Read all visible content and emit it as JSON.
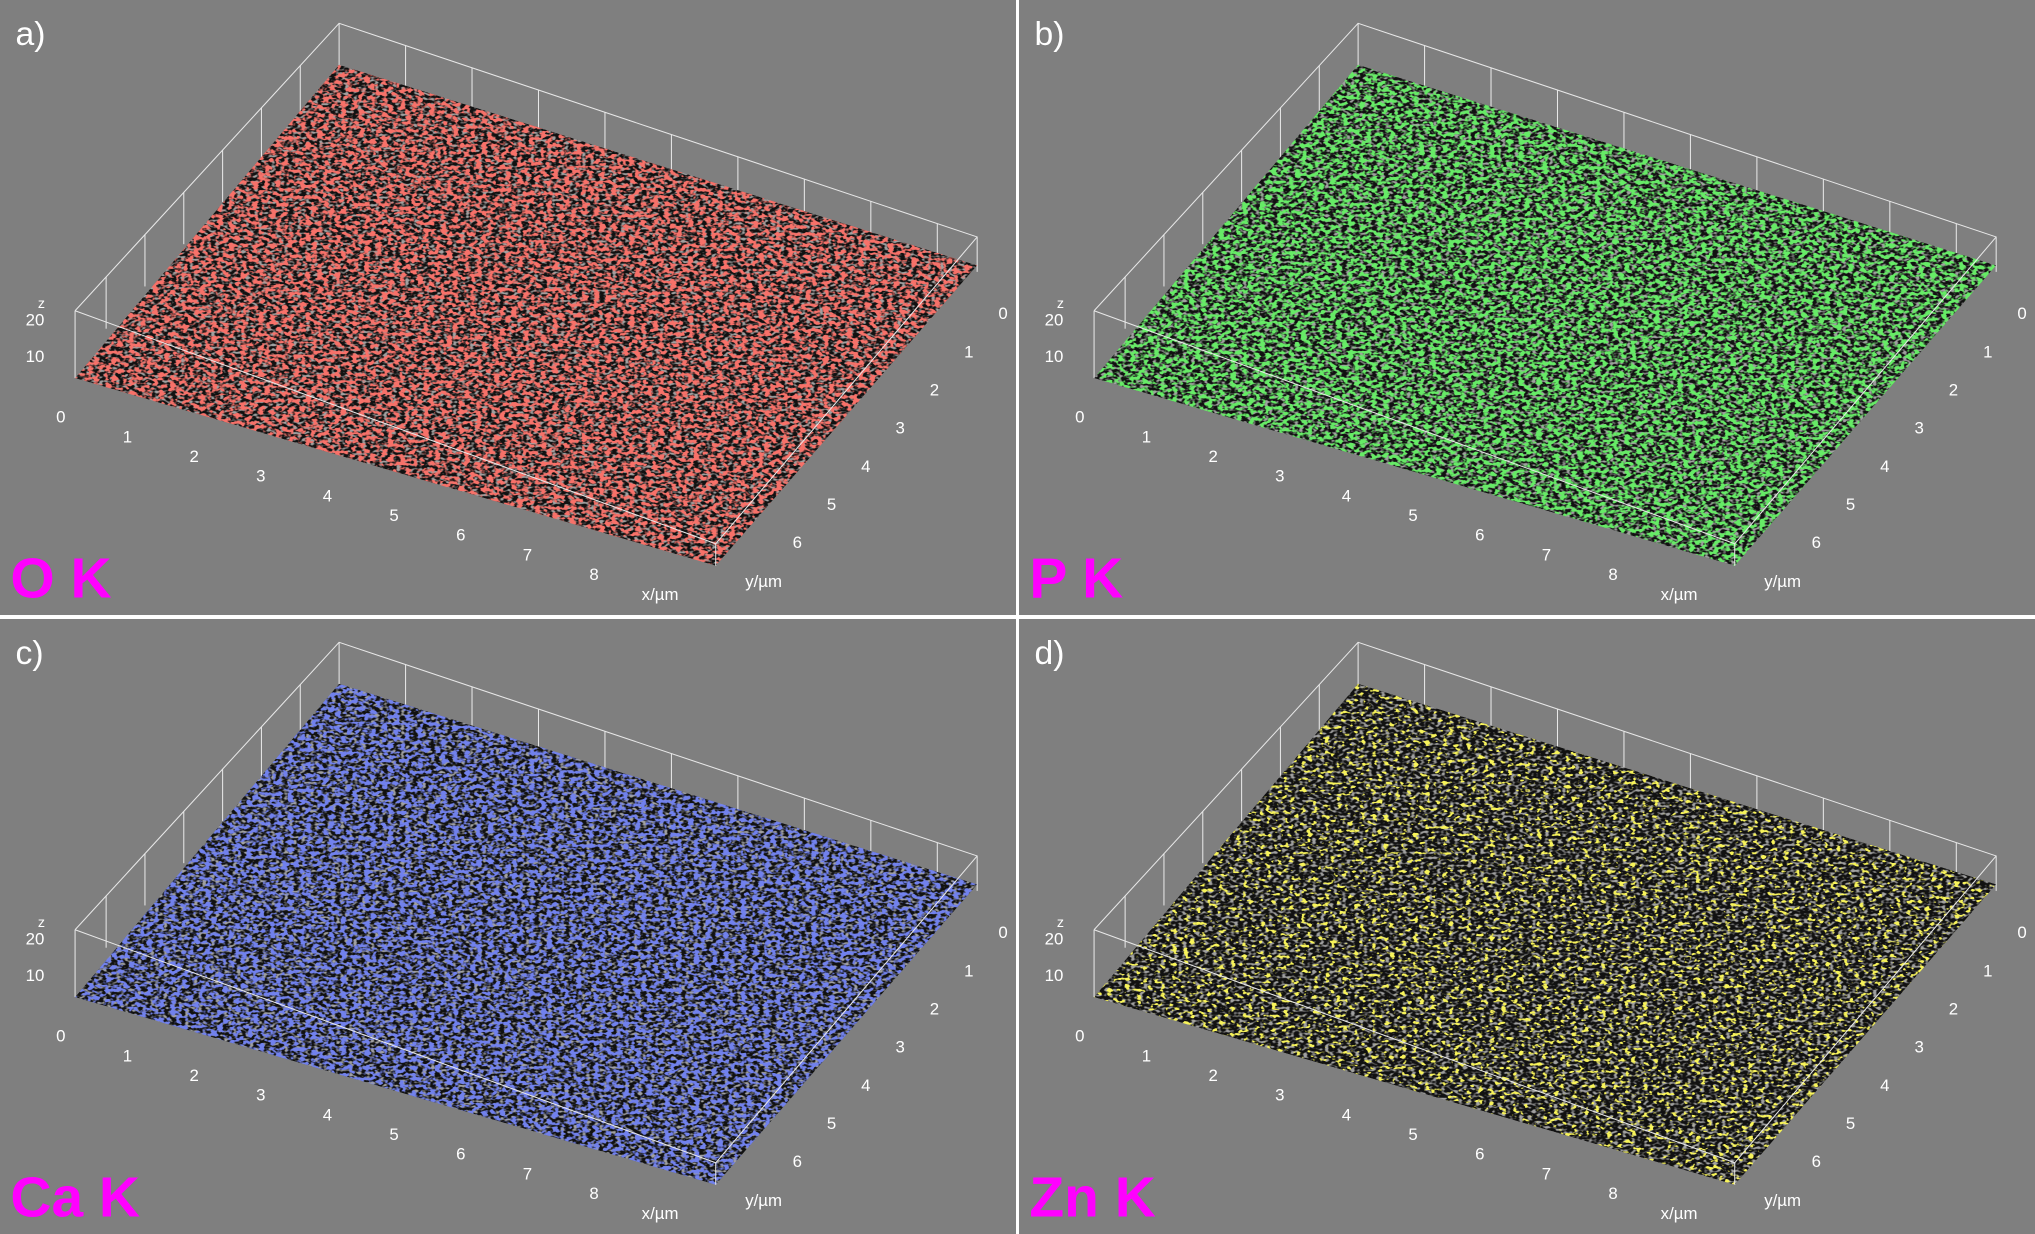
{
  "panels": [
    {
      "label": "a)",
      "element": "O K",
      "color": "#ee2a24",
      "x_ticks": [
        "0",
        "1",
        "2",
        "3",
        "4",
        "5",
        "6",
        "7",
        "8"
      ],
      "y_ticks": [
        "0",
        "1",
        "2",
        "3",
        "4",
        "5",
        "6"
      ],
      "z_ticks": [
        "10",
        "20"
      ],
      "z_label": "z",
      "x_label": "x/µm",
      "y_label": "y/µm"
    },
    {
      "label": "b)",
      "element": "P K",
      "color": "#22d422",
      "x_ticks": [
        "0",
        "1",
        "2",
        "3",
        "4",
        "5",
        "6",
        "7",
        "8"
      ],
      "y_ticks": [
        "0",
        "1",
        "2",
        "3",
        "4",
        "5",
        "6"
      ],
      "z_ticks": [
        "10",
        "20"
      ],
      "z_label": "z",
      "x_label": "x/µm",
      "y_label": "y/µm"
    },
    {
      "label": "c)",
      "element": "Ca K",
      "color": "#2a38d8",
      "x_ticks": [
        "0",
        "1",
        "2",
        "3",
        "4",
        "5",
        "6",
        "7",
        "8"
      ],
      "y_ticks": [
        "0",
        "1",
        "2",
        "3",
        "4",
        "5",
        "6"
      ],
      "z_ticks": [
        "10",
        "20"
      ],
      "z_label": "z",
      "x_label": "x/µm",
      "y_label": "y/µm"
    },
    {
      "label": "d)",
      "element": "Zn K",
      "color": "#f0e61a",
      "x_ticks": [
        "0",
        "1",
        "2",
        "3",
        "4",
        "5",
        "6",
        "7",
        "8"
      ],
      "y_ticks": [
        "0",
        "1",
        "2",
        "3",
        "4",
        "5",
        "6"
      ],
      "z_ticks": [
        "10",
        "20"
      ],
      "z_label": "z",
      "x_label": "x/µm",
      "y_label": "y/µm"
    }
  ]
}
